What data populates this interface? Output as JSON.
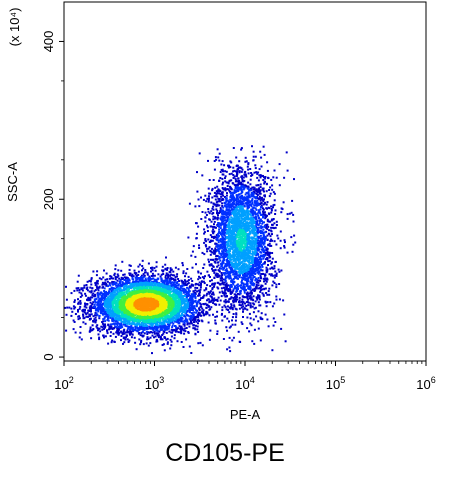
{
  "chart_data": {
    "type": "scatter",
    "subtype": "flow-cytometry-density-plot",
    "title": "CD105-PE",
    "xlabel": "PE-A",
    "ylabel": "SSC-A",
    "y_multiplier_label": "(x 10⁴)",
    "x_scale": "log",
    "y_scale": "linear",
    "xlim": [
      100,
      1000000
    ],
    "ylim": [
      -5,
      450
    ],
    "x_ticks": [
      {
        "value": 100,
        "base": "10",
        "exp": "2"
      },
      {
        "value": 1000,
        "base": "10",
        "exp": "3"
      },
      {
        "value": 10000,
        "base": "10",
        "exp": "4"
      },
      {
        "value": 100000,
        "base": "10",
        "exp": "5"
      },
      {
        "value": 1000000,
        "base": "10",
        "exp": "6"
      }
    ],
    "y_ticks": [
      {
        "value": 0,
        "label": "0"
      },
      {
        "value": 200,
        "label": "200"
      },
      {
        "value": 400,
        "label": "400"
      }
    ],
    "grid": false,
    "colormap": [
      "#0000c8",
      "#0030ff",
      "#00a0ff",
      "#00e0c0",
      "#40f040",
      "#f0f000",
      "#ff9000"
    ],
    "populations": [
      {
        "log_x_center": 2.9,
        "y_center": 68,
        "log_x_sd": 0.3,
        "y_sd": 18,
        "count": 5200,
        "peak_density_level": 0.95
      },
      {
        "log_x_center": 3.95,
        "y_center": 150,
        "log_x_sd": 0.18,
        "y_sd": 45,
        "count": 3300,
        "peak_density_level": 0.45
      }
    ]
  }
}
